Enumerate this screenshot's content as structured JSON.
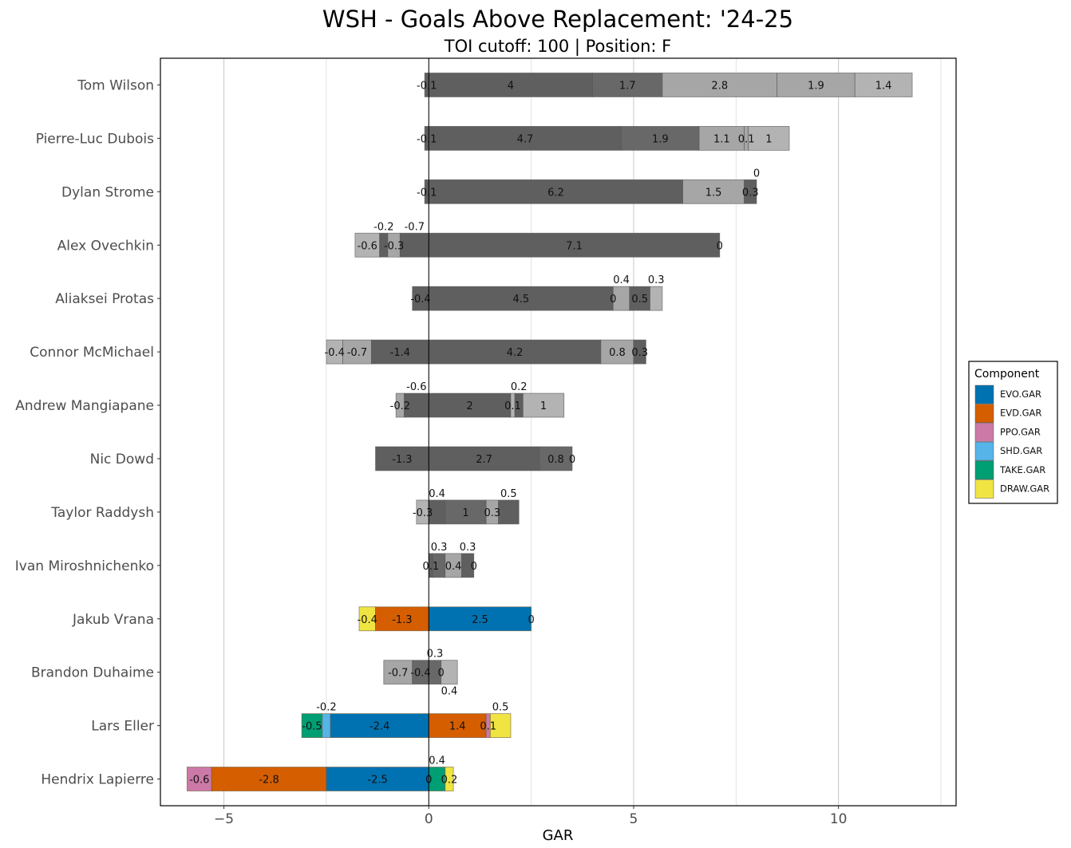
{
  "chart_data": {
    "type": "bar",
    "orientation": "horizontal",
    "stacked": true,
    "title": "WSH - Goals Above Replacement: '24-25",
    "subtitle": "TOI cutoff: 100 | Position: F",
    "xlabel": "GAR",
    "ylabel": "",
    "xlim": [
      -6.55,
      12.87
    ],
    "x_ticks": [
      -5,
      0,
      5,
      10
    ],
    "grid": true,
    "legend": {
      "title": "Component",
      "placement": "right",
      "entries": [
        {
          "name": "EVO.GAR",
          "color": "#0072B2"
        },
        {
          "name": "EVD.GAR",
          "color": "#D55E00"
        },
        {
          "name": "PPO.GAR",
          "color": "#CC79A7"
        },
        {
          "name": "SHD.GAR",
          "color": "#56B4E9"
        },
        {
          "name": "TAKE.GAR",
          "color": "#009E73"
        },
        {
          "name": "DRAW.GAR",
          "color": "#F0E442"
        }
      ]
    },
    "gray_shades": {
      "dark": "#5f5f5f",
      "mid": "#686868",
      "light": "#a6a6a6",
      "lighter": "#b3b3b3"
    },
    "players": [
      {
        "name": "Tom Wilson",
        "highlighted": false,
        "segments": [
          {
            "value": -0.1,
            "shade": "dark"
          },
          {
            "value": 4,
            "shade": "dark"
          },
          {
            "value": 1.7,
            "shade": "mid"
          },
          {
            "value": 2.8,
            "shade": "light"
          },
          {
            "value": 1.9,
            "shade": "light"
          },
          {
            "value": 1.4,
            "shade": "lighter"
          }
        ]
      },
      {
        "name": "Pierre-Luc Dubois",
        "highlighted": false,
        "segments": [
          {
            "value": -0.1,
            "shade": "dark"
          },
          {
            "value": 4.7,
            "shade": "dark"
          },
          {
            "value": 1.9,
            "shade": "mid"
          },
          {
            "value": 1.1,
            "shade": "light"
          },
          {
            "value": 0.1,
            "shade": "light"
          },
          {
            "value": 1,
            "shade": "lighter"
          }
        ]
      },
      {
        "name": "Dylan Strome",
        "highlighted": false,
        "segments": [
          {
            "value": -0.1,
            "shade": "dark"
          },
          {
            "value": 6.2,
            "shade": "dark"
          },
          {
            "value": 1.5,
            "shade": "light"
          },
          {
            "value": 0.3,
            "shade": "dark"
          },
          {
            "value": 0,
            "shade": "dark"
          }
        ]
      },
      {
        "name": "Alex Ovechkin",
        "highlighted": false,
        "segments": [
          {
            "value": -0.6,
            "shade": "lighter"
          },
          {
            "value": -0.2,
            "shade": "dark"
          },
          {
            "value": -0.3,
            "shade": "light"
          },
          {
            "value": -0.7,
            "shade": "dark"
          },
          {
            "value": 7.1,
            "shade": "dark"
          },
          {
            "value": 0,
            "shade": "dark"
          }
        ]
      },
      {
        "name": "Aliaksei Protas",
        "highlighted": false,
        "segments": [
          {
            "value": -0.4,
            "shade": "dark"
          },
          {
            "value": 4.5,
            "shade": "dark"
          },
          {
            "value": 0,
            "shade": "dark"
          },
          {
            "value": 0.4,
            "shade": "light"
          },
          {
            "value": 0.5,
            "shade": "dark"
          },
          {
            "value": 0.3,
            "shade": "lighter"
          }
        ]
      },
      {
        "name": "Connor McMichael",
        "highlighted": false,
        "segments": [
          {
            "value": -0.4,
            "shade": "lighter"
          },
          {
            "value": -0.7,
            "shade": "light"
          },
          {
            "value": -1.4,
            "shade": "dark"
          },
          {
            "value": 4.2,
            "shade": "dark"
          },
          {
            "value": 0.8,
            "shade": "light"
          },
          {
            "value": 0.3,
            "shade": "dark"
          }
        ]
      },
      {
        "name": "Andrew Mangiapane",
        "highlighted": false,
        "segments": [
          {
            "value": -0.2,
            "shade": "light"
          },
          {
            "value": -0.6,
            "shade": "dark"
          },
          {
            "value": 2,
            "shade": "dark"
          },
          {
            "value": 0.1,
            "shade": "lighter"
          },
          {
            "value": 0.2,
            "shade": "dark"
          },
          {
            "value": 1,
            "shade": "lighter"
          }
        ]
      },
      {
        "name": "Nic Dowd",
        "highlighted": false,
        "segments": [
          {
            "value": -1.3,
            "shade": "dark"
          },
          {
            "value": 2.7,
            "shade": "dark"
          },
          {
            "value": 0.8,
            "shade": "mid"
          },
          {
            "value": 0,
            "shade": "dark"
          }
        ]
      },
      {
        "name": "Taylor Raddysh",
        "highlighted": false,
        "segments": [
          {
            "value": -0.3,
            "shade": "lighter"
          },
          {
            "value": 0.4,
            "shade": "dark"
          },
          {
            "value": 1,
            "shade": "mid"
          },
          {
            "value": 0.3,
            "shade": "light"
          },
          {
            "value": 0.5,
            "shade": "dark"
          }
        ]
      },
      {
        "name": "Ivan Miroshnichenko",
        "highlighted": false,
        "segments": [
          {
            "value": 0.1,
            "shade": "dark"
          },
          {
            "value": 0.3,
            "shade": "mid"
          },
          {
            "value": 0.4,
            "shade": "light"
          },
          {
            "value": 0.3,
            "shade": "dark"
          },
          {
            "value": 0,
            "shade": "dark"
          }
        ]
      },
      {
        "name": "Jakub Vrana",
        "highlighted": true,
        "segments": [
          {
            "value": -0.4,
            "component": "DRAW.GAR"
          },
          {
            "value": -1.3,
            "component": "EVD.GAR"
          },
          {
            "value": 2.5,
            "component": "EVO.GAR"
          },
          {
            "value": 0,
            "component": "PPO.GAR"
          }
        ]
      },
      {
        "name": "Brandon Duhaime",
        "highlighted": false,
        "segments": [
          {
            "value": -0.7,
            "shade": "light"
          },
          {
            "value": -0.4,
            "shade": "mid"
          },
          {
            "value": 0.3,
            "shade": "mid"
          },
          {
            "value": 0,
            "shade": "mid"
          },
          {
            "value": 0.4,
            "shade": "lighter"
          }
        ]
      },
      {
        "name": "Lars Eller",
        "highlighted": true,
        "segments": [
          {
            "value": -0.5,
            "component": "TAKE.GAR"
          },
          {
            "value": -0.2,
            "component": "SHD.GAR"
          },
          {
            "value": -2.4,
            "component": "EVO.GAR"
          },
          {
            "value": 1.4,
            "component": "EVD.GAR"
          },
          {
            "value": 0.1,
            "component": "PPO.GAR"
          },
          {
            "value": 0.5,
            "component": "DRAW.GAR"
          }
        ]
      },
      {
        "name": "Hendrix Lapierre",
        "highlighted": true,
        "segments": [
          {
            "value": -0.6,
            "component": "PPO.GAR"
          },
          {
            "value": -2.8,
            "component": "EVD.GAR"
          },
          {
            "value": -2.5,
            "component": "EVO.GAR"
          },
          {
            "value": 0,
            "component": "SHD.GAR"
          },
          {
            "value": 0.4,
            "component": "TAKE.GAR"
          },
          {
            "value": 0.2,
            "component": "DRAW.GAR"
          }
        ]
      }
    ]
  }
}
